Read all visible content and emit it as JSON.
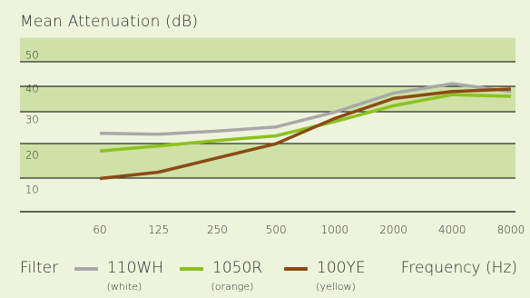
{
  "chart_data": {
    "type": "line",
    "title": "Mean Attenuation (dB)",
    "xlabel": "Frequency (Hz)",
    "ylabel": "",
    "categories": [
      "60",
      "125",
      "250",
      "500",
      "1000",
      "2000",
      "4000",
      "8000"
    ],
    "y_ticks": [
      "50",
      "40",
      "30",
      "20",
      "10"
    ],
    "ylim": [
      0,
      50
    ],
    "grid": true,
    "legend_position": "bottom",
    "series": [
      {
        "name": "110WH",
        "note": "(white)",
        "color": "#a8a8a8",
        "values": [
          24.8,
          24.5,
          25.5,
          26.8,
          31.5,
          37.5,
          40.5,
          38
        ]
      },
      {
        "name": "1050R",
        "note": "(orange)",
        "color": "#8cc21f",
        "values": [
          19.2,
          20.8,
          22.5,
          24,
          28.5,
          33.5,
          37,
          36.5
        ]
      },
      {
        "name": "100YE",
        "note": "(yellow)",
        "color": "#8a4a14",
        "values": [
          10.5,
          12.5,
          17,
          21.5,
          29.5,
          35.8,
          38,
          38.8
        ]
      }
    ]
  },
  "legend": {
    "filter_label": "Filter"
  },
  "colors": {
    "band_dark": "#cfe1a7",
    "band_light": "#eef4dc",
    "grid_line": "#2e2e2e"
  }
}
